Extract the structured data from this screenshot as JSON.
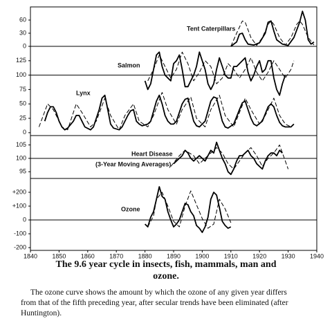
{
  "chart_data": [
    {
      "type": "line",
      "title": "Tent Caterpillars",
      "xlim": [
        1840,
        1940
      ],
      "ylim": [
        0,
        90
      ],
      "yticks": [
        0,
        30,
        60
      ],
      "baseline": 0,
      "series": [
        {
          "color": "#000",
          "dashed": false,
          "x": [
            1910,
            1912,
            1913,
            1914,
            1915,
            1916,
            1918,
            1920,
            1922,
            1923,
            1924,
            1925,
            1926,
            1928,
            1930,
            1932,
            1934,
            1935,
            1936,
            1937,
            1938,
            1939
          ],
          "values": [
            0,
            10,
            28,
            30,
            15,
            5,
            3,
            8,
            30,
            55,
            58,
            35,
            15,
            5,
            2,
            20,
            55,
            80,
            60,
            15,
            5,
            10
          ]
        },
        {
          "color": "#000",
          "dashed": true,
          "x": [
            1910,
            1912,
            1914,
            1915,
            1917,
            1919,
            1921,
            1923,
            1924,
            1925,
            1927,
            1929,
            1931,
            1933,
            1934,
            1935,
            1937,
            1939
          ],
          "values": [
            0,
            30,
            58,
            55,
            20,
            2,
            20,
            50,
            58,
            50,
            20,
            3,
            20,
            50,
            58,
            50,
            20,
            3
          ]
        }
      ]
    },
    {
      "type": "line",
      "annotations": [
        "Salmon",
        "Lynx"
      ],
      "xlim": [
        1840,
        1940
      ],
      "ylim": [
        -5,
        150
      ],
      "yticks": [
        0,
        25,
        50,
        75,
        100,
        125
      ],
      "baseline": 100,
      "series": [
        {
          "color": "#000",
          "dashed": false,
          "x": [
            1880,
            1881,
            1882,
            1884,
            1885,
            1886,
            1887,
            1888,
            1889,
            1890,
            1891,
            1892,
            1893,
            1894,
            1895,
            1896,
            1897,
            1898,
            1899,
            1900,
            1901,
            1902,
            1903,
            1904,
            1905,
            1906,
            1907,
            1908,
            1909,
            1910,
            1911,
            1912,
            1913,
            1914,
            1915,
            1916,
            1917,
            1918,
            1919,
            1920,
            1921,
            1922,
            1923,
            1924,
            1925,
            1926,
            1927,
            1928,
            1929
          ],
          "values": [
            90,
            75,
            85,
            135,
            140,
            115,
            100,
            95,
            90,
            120,
            125,
            135,
            110,
            80,
            80,
            90,
            100,
            115,
            140,
            125,
            110,
            85,
            75,
            85,
            110,
            130,
            115,
            100,
            95,
            95,
            115,
            115,
            120,
            125,
            130,
            105,
            90,
            100,
            115,
            125,
            105,
            110,
            125,
            125,
            95,
            75,
            65,
            85,
            100
          ]
        },
        {
          "color": "#000",
          "dashed": true,
          "x": [
            1881,
            1883,
            1885,
            1887,
            1889,
            1891,
            1893,
            1895,
            1897,
            1899,
            1901,
            1903,
            1905,
            1907,
            1909,
            1911,
            1913,
            1915,
            1917,
            1919,
            1921,
            1923,
            1925,
            1927,
            1929,
            1931,
            1932
          ],
          "values": [
            90,
            110,
            135,
            115,
            95,
            110,
            140,
            120,
            90,
            105,
            125,
            115,
            85,
            95,
            120,
            110,
            95,
            110,
            130,
            105,
            90,
            105,
            125,
            110,
            95,
            110,
            125
          ]
        },
        {
          "color": "#000",
          "dashed": false,
          "x": [
            1845,
            1846,
            1847,
            1848,
            1849,
            1850,
            1851,
            1852,
            1853,
            1855,
            1856,
            1857,
            1858,
            1859,
            1861,
            1862,
            1864,
            1865,
            1866,
            1867,
            1868,
            1869,
            1871,
            1872,
            1874,
            1875,
            1876,
            1877,
            1878,
            1879,
            1881,
            1882,
            1884,
            1885,
            1886,
            1887,
            1888,
            1889,
            1890,
            1891,
            1893,
            1894,
            1895,
            1896,
            1897,
            1898,
            1899,
            1901,
            1903,
            1904,
            1905,
            1906,
            1907,
            1908,
            1909,
            1911,
            1913,
            1914,
            1915,
            1916,
            1917,
            1918,
            1919,
            1921,
            1923,
            1924,
            1925,
            1926,
            1927,
            1928,
            1929,
            1931,
            1932
          ],
          "values": [
            20,
            35,
            45,
            45,
            35,
            20,
            10,
            5,
            8,
            20,
            30,
            30,
            20,
            10,
            5,
            10,
            40,
            60,
            65,
            40,
            15,
            8,
            5,
            10,
            30,
            38,
            40,
            20,
            15,
            12,
            15,
            20,
            55,
            65,
            50,
            30,
            20,
            15,
            15,
            20,
            50,
            58,
            60,
            40,
            20,
            12,
            10,
            20,
            55,
            62,
            60,
            40,
            20,
            10,
            8,
            15,
            40,
            52,
            55,
            40,
            25,
            15,
            12,
            20,
            45,
            50,
            45,
            30,
            18,
            12,
            10,
            10,
            15
          ]
        },
        {
          "color": "#000",
          "dashed": true,
          "x": [
            1843,
            1846,
            1848,
            1851,
            1853,
            1856,
            1858,
            1861,
            1863,
            1866,
            1868,
            1871,
            1873,
            1876,
            1878,
            1881,
            1883,
            1886,
            1888,
            1891,
            1893,
            1896,
            1898,
            1901,
            1903,
            1906,
            1908,
            1911,
            1913,
            1915,
            1917,
            1920,
            1922,
            1925,
            1927,
            1929,
            1931
          ],
          "values": [
            10,
            50,
            40,
            10,
            5,
            50,
            35,
            10,
            20,
            60,
            30,
            5,
            30,
            50,
            20,
            10,
            30,
            70,
            40,
            15,
            40,
            62,
            25,
            10,
            40,
            65,
            30,
            10,
            35,
            60,
            40,
            15,
            30,
            60,
            30,
            15,
            10
          ]
        }
      ]
    },
    {
      "type": "line",
      "title": "Heart Disease",
      "subtitle": "(3-Year Moving Averages)",
      "xlim": [
        1840,
        1940
      ],
      "ylim": [
        92.5,
        108.5
      ],
      "yticks": [
        95,
        100,
        105
      ],
      "baseline": 100,
      "series": [
        {
          "color": "#000",
          "dashed": false,
          "x": [
            1890,
            1891,
            1892,
            1893,
            1894,
            1895,
            1896,
            1897,
            1898,
            1899,
            1900,
            1901,
            1902,
            1903,
            1904,
            1905,
            1906,
            1907,
            1908,
            1909,
            1910,
            1911,
            1912,
            1913,
            1914,
            1915,
            1916,
            1917,
            1918,
            1919,
            1920,
            1921,
            1922,
            1923,
            1924,
            1925,
            1926,
            1927,
            1928
          ],
          "values": [
            98,
            99,
            100,
            101,
            103,
            102,
            100,
            99,
            100,
            101,
            100,
            99,
            101,
            103,
            102,
            106,
            103,
            100,
            98,
            95,
            94,
            96,
            99,
            101,
            101,
            102,
            103,
            101,
            100,
            98,
            97,
            96,
            99,
            101,
            102,
            102,
            101,
            103,
            102
          ]
        },
        {
          "color": "#000",
          "dashed": true,
          "x": [
            1889,
            1892,
            1894,
            1897,
            1899,
            1901,
            1903,
            1905,
            1907,
            1909,
            1911,
            1913,
            1915,
            1917,
            1919,
            1921,
            1923,
            1925,
            1927,
            1929,
            1930
          ],
          "values": [
            97,
            101,
            103,
            101,
            98,
            100,
            102,
            104,
            102,
            98,
            96,
            99,
            102,
            104,
            101,
            97,
            100,
            102,
            105,
            99,
            96
          ]
        }
      ]
    },
    {
      "type": "line",
      "title": "Ozone",
      "xlim": [
        1840,
        1940
      ],
      "ylim": [
        -220,
        300
      ],
      "yticks": [
        -200,
        -100,
        0,
        {
          "value": 100,
          "label": "+100"
        },
        {
          "value": 200,
          "label": "+200"
        }
      ],
      "baseline": 0,
      "xticks": [
        1840,
        1850,
        1860,
        1870,
        1880,
        1890,
        1900,
        1910,
        1920,
        1930,
        1940
      ],
      "series": [
        {
          "color": "#000",
          "dashed": false,
          "x": [
            1880,
            1881,
            1882,
            1883,
            1884,
            1885,
            1886,
            1887,
            1888,
            1889,
            1890,
            1891,
            1892,
            1893,
            1894,
            1895,
            1896,
            1897,
            1898,
            1899,
            1900,
            1901,
            1902,
            1903,
            1904,
            1905,
            1906,
            1907,
            1908,
            1909,
            1910
          ],
          "values": [
            -30,
            -50,
            20,
            60,
            150,
            240,
            170,
            150,
            60,
            0,
            -50,
            -30,
            0,
            60,
            120,
            110,
            60,
            30,
            -40,
            -60,
            -90,
            -50,
            20,
            150,
            200,
            180,
            90,
            -10,
            -40,
            -60,
            -50
          ]
        },
        {
          "color": "#000",
          "dashed": true,
          "x": [
            1881,
            1883,
            1884,
            1886,
            1888,
            1890,
            1892,
            1894,
            1896,
            1898,
            1900,
            1902,
            1904,
            1906,
            1908,
            1910
          ],
          "values": [
            -50,
            30,
            150,
            200,
            100,
            -10,
            -50,
            100,
            210,
            110,
            10,
            -60,
            -30,
            150,
            80,
            -20
          ]
        }
      ]
    }
  ],
  "caption": {
    "title": "The 9.6 year cycle in insects, fish, mammals, man and ozone.",
    "text": "The ozone curve shows the amount by which the ozone of any given year differs from that of the fifth preceding year, after secular trends have been eliminated (after Huntington)."
  }
}
